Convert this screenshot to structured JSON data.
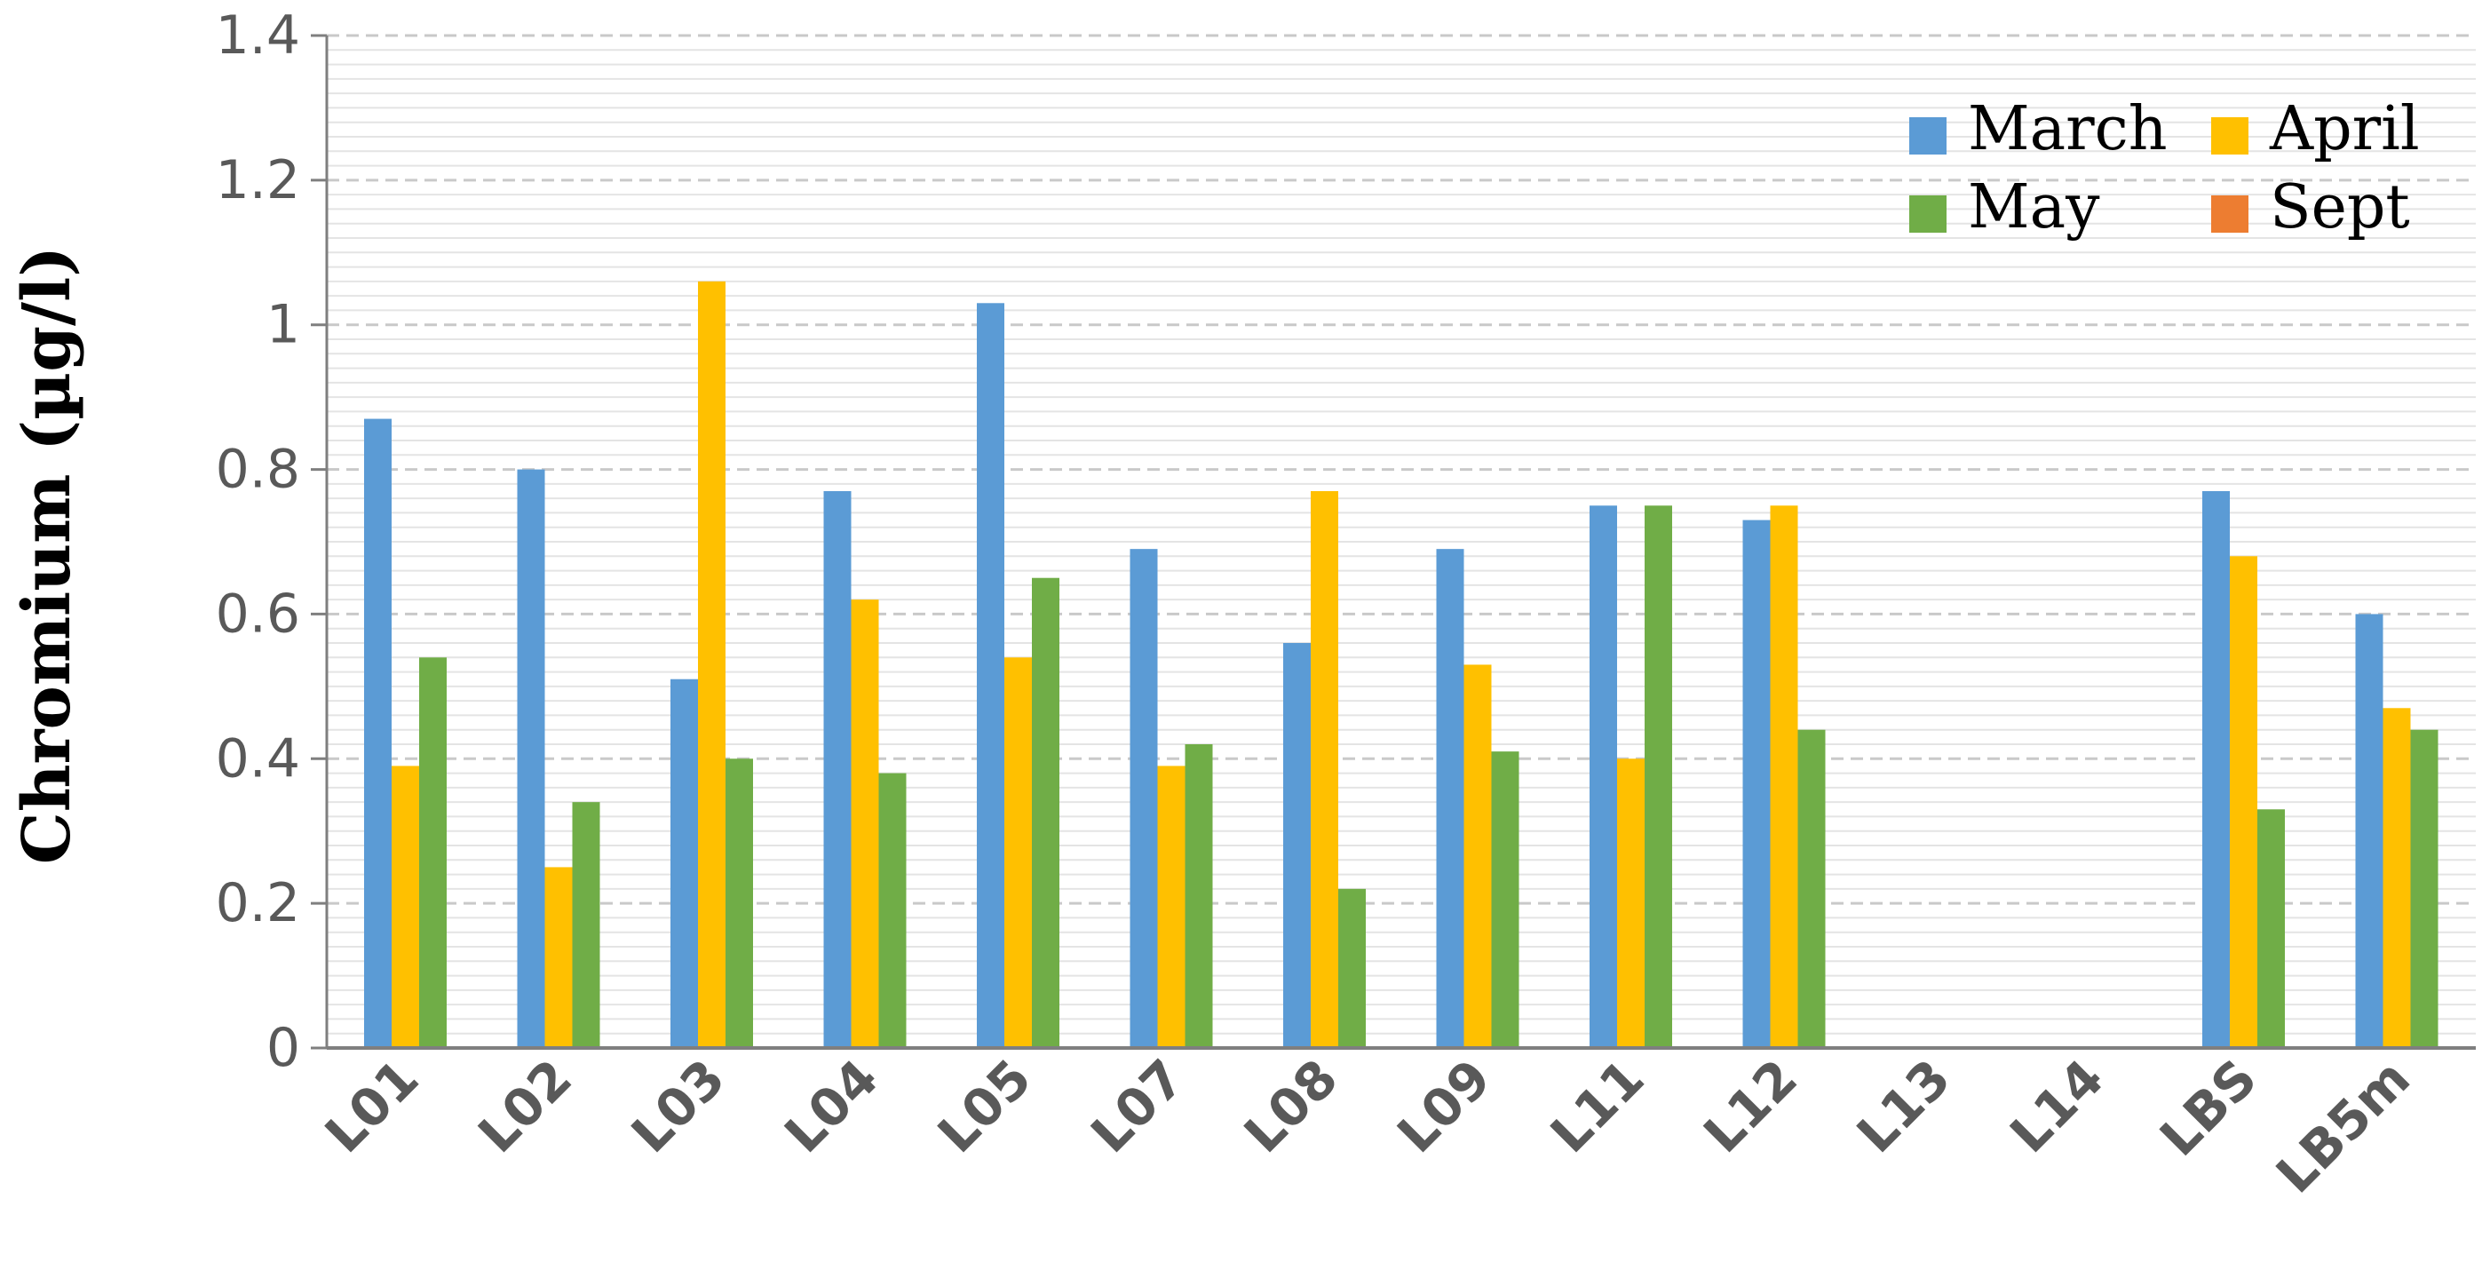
{
  "chart_data": {
    "type": "bar",
    "ylabel": "Chromium (µg/l)",
    "xlabel": "",
    "ylim": [
      0,
      1.4
    ],
    "yticks": [
      "0",
      "0.2",
      "0.4",
      "0.6",
      "0.8",
      "1",
      "1.2",
      "1.4"
    ],
    "grid": true,
    "legend_position": "top-right",
    "categories": [
      "L01",
      "L02",
      "L03",
      "L04",
      "L05",
      "L07",
      "L08",
      "L09",
      "L11",
      "L12",
      "L13",
      "L14",
      "LBS",
      "LB5m"
    ],
    "series": [
      {
        "name": "March",
        "color": "#5B9BD5",
        "values": [
          0.87,
          0.8,
          0.51,
          0.77,
          1.03,
          0.69,
          0.56,
          0.69,
          0.75,
          0.73,
          null,
          null,
          0.77,
          0.6
        ]
      },
      {
        "name": "April",
        "color": "#FFC000",
        "values": [
          0.39,
          0.25,
          1.06,
          0.62,
          0.54,
          0.39,
          0.77,
          0.53,
          0.4,
          0.75,
          null,
          null,
          0.68,
          0.47
        ]
      },
      {
        "name": "May",
        "color": "#70AD47",
        "values": [
          0.54,
          0.34,
          0.4,
          0.38,
          0.65,
          0.42,
          0.22,
          0.41,
          0.75,
          0.44,
          null,
          null,
          0.33,
          0.44
        ]
      },
      {
        "name": "Sept",
        "color": "#ED7D31",
        "values": [
          null,
          null,
          null,
          null,
          null,
          null,
          null,
          null,
          null,
          null,
          null,
          null,
          null,
          null
        ]
      }
    ]
  }
}
